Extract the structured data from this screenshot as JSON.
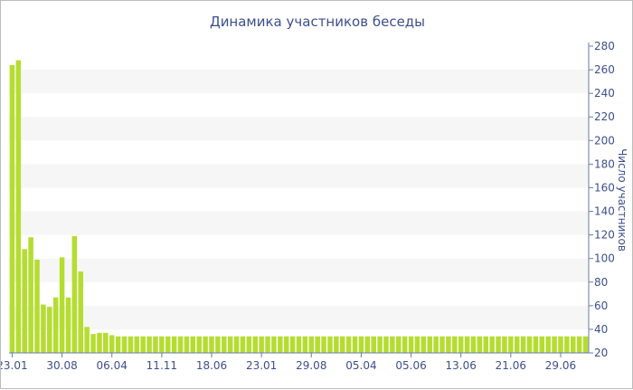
{
  "chart_data": {
    "type": "bar",
    "title": "Динамика участников беседы",
    "ylabel": "Число участников",
    "xlabel": "",
    "ylim": [
      20,
      280
    ],
    "y_ticks": [
      20,
      40,
      60,
      80,
      100,
      120,
      140,
      160,
      180,
      200,
      220,
      240,
      260,
      280
    ],
    "y_axis_side": "right",
    "grid": "alternating horizontal bands",
    "legend": "none",
    "x_tick_labels": [
      "23.01",
      "30.08",
      "06.04",
      "11.11",
      "18.06",
      "23.01",
      "29.08",
      "05.04",
      "05.06",
      "13.06",
      "21.06",
      "29.06"
    ],
    "x_tick_every": 8,
    "bar_color": "#b5dd30",
    "band_color": "#f6f6f6",
    "text_color": "#3d4f8e",
    "values": [
      264,
      268,
      108,
      118,
      99,
      61,
      59,
      67,
      101,
      67,
      119,
      89,
      42,
      36,
      37,
      37,
      35,
      34,
      34,
      34,
      34,
      34,
      34,
      34,
      34,
      34,
      34,
      34,
      34,
      34,
      34,
      34,
      34,
      34,
      34,
      34,
      34,
      34,
      34,
      34,
      34,
      34,
      34,
      34,
      34,
      34,
      34,
      34,
      34,
      34,
      34,
      34,
      34,
      34,
      34,
      34,
      34,
      34,
      34,
      34,
      34,
      34,
      34,
      34,
      34,
      34,
      34,
      34,
      34,
      34,
      34,
      34,
      34,
      34,
      34,
      34,
      34,
      34,
      34,
      34,
      34,
      34,
      34,
      34,
      34,
      34,
      34,
      34,
      34,
      34,
      34,
      34,
      34
    ]
  }
}
